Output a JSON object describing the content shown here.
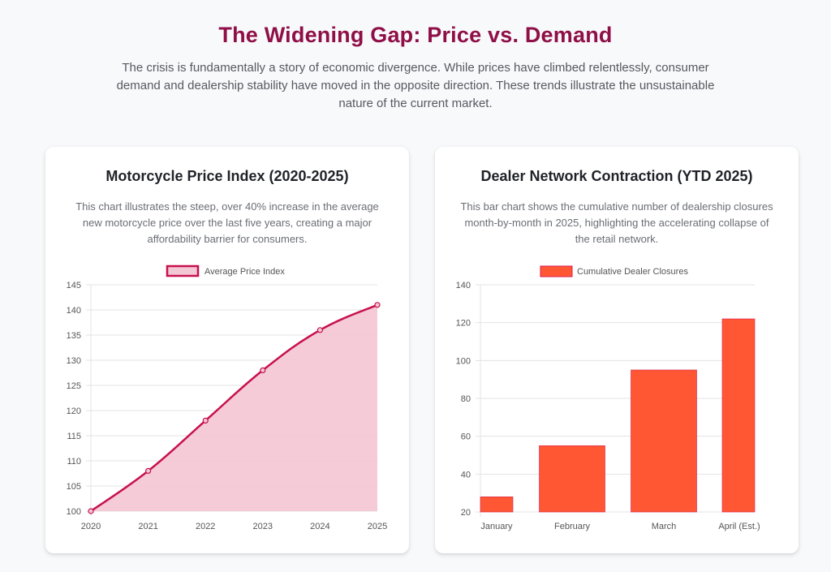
{
  "header": {
    "title": "The Widening Gap: Price vs. Demand",
    "intro": "The crisis is fundamentally a story of economic divergence. While prices have climbed relentlessly, consumer demand and dealership stability have moved in the opposite direction. These trends illustrate the unsustainable nature of the current market."
  },
  "colors": {
    "title": "#8f0f47",
    "line": "#c8104f",
    "line_fill": "#f3c8d5",
    "bar_fill": "#ff5733",
    "bar_border": "#d81b50"
  },
  "cards": [
    {
      "title": "Motorcycle Price Index (2020-2025)",
      "description": "This chart illustrates the steep, over 40% increase in the average new motorcycle price over the last five years, creating a major affordability barrier for consumers."
    },
    {
      "title": "Dealer Network Contraction (YTD 2025)",
      "description": "This bar chart shows the cumulative number of dealership closures month-by-month in 2025, highlighting the accelerating collapse of the retail network."
    }
  ],
  "chart_data": [
    {
      "type": "line",
      "title": "",
      "legend": "Average Price Index",
      "legend_position": "top-center",
      "x": [
        "2020",
        "2021",
        "2022",
        "2023",
        "2024",
        "2025"
      ],
      "values": [
        100,
        108,
        118,
        128,
        136,
        141
      ],
      "ylim": [
        100,
        145
      ],
      "yticks": [
        100,
        105,
        110,
        115,
        120,
        125,
        130,
        135,
        140,
        145
      ],
      "xlabel": "",
      "ylabel": "",
      "grid": true,
      "filled": true,
      "smooth": true
    },
    {
      "type": "bar",
      "title": "",
      "legend": "Cumulative Dealer Closures",
      "legend_position": "top-center",
      "categories": [
        "January",
        "February",
        "March",
        "April (Est.)"
      ],
      "values": [
        28,
        55,
        95,
        122
      ],
      "ylim": [
        20,
        140
      ],
      "yticks": [
        20,
        40,
        60,
        80,
        100,
        120,
        140
      ],
      "xlabel": "",
      "ylabel": "",
      "grid": true
    }
  ]
}
